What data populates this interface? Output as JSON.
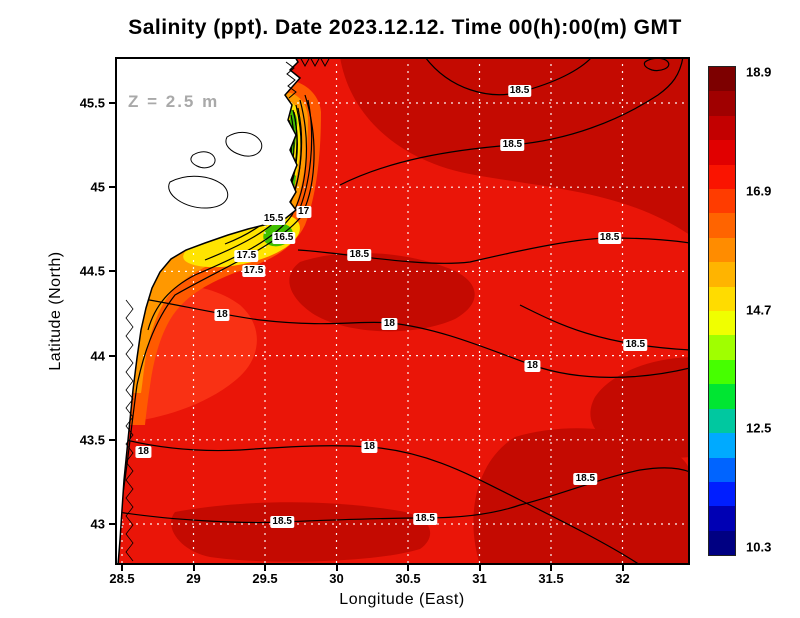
{
  "title": "Salinity (ppt). Date 2023.12.12. Time 00(h):00(m) GMT",
  "annotation": {
    "depth_label": "Z = 2.5 m",
    "color": "#a9a9a9"
  },
  "axes": {
    "x": {
      "label": "Longitude (East)",
      "ticks": [
        28.5,
        29,
        29.5,
        30,
        30.5,
        31,
        31.5,
        32
      ],
      "tick_labels": [
        "28.5",
        "29",
        "29.5",
        "30",
        "30.5",
        "31",
        "31.5",
        "32"
      ]
    },
    "y": {
      "label": "Latitude (North)",
      "ticks": [
        43,
        43.5,
        44,
        44.5,
        45,
        45.5
      ],
      "tick_labels": [
        "43",
        "43.5",
        "44",
        "44.5",
        "45",
        "45.5"
      ]
    }
  },
  "colorbar": {
    "min": 10.3,
    "max": 18.9,
    "labels": [
      "18.9",
      "16.9",
      "14.7",
      "12.5",
      "10.3"
    ],
    "colors_top_to_bottom": [
      "#7d0000",
      "#a00000",
      "#c30000",
      "#e10000",
      "#fa1400",
      "#ff3c00",
      "#ff6400",
      "#ff8c00",
      "#ffb400",
      "#ffdc00",
      "#f0ff00",
      "#a0ff00",
      "#46ff00",
      "#00e632",
      "#00c8a0",
      "#00aaff",
      "#0064ff",
      "#001eff",
      "#0000b4",
      "#000082"
    ]
  },
  "map_colors": {
    "sea_base_red": "#ea1508",
    "dark_red": "#c40a01",
    "bright_red": "#f93114",
    "orange_red": "#ff5a00",
    "orange": "#ff9800",
    "yellow": "#ffe400",
    "green": "#3fbf00",
    "land": "#ffffff",
    "contour": "#000000",
    "grid": "#ffffff"
  },
  "chart_data": {
    "type": "heatmap",
    "variable": "Salinity",
    "units": "ppt",
    "date": "2023.12.12",
    "time": "00(h):00(m) GMT",
    "depth": "Z = 2.5 m",
    "title": "Salinity (ppt). Date 2023.12.12. Time 00(h):00(m) GMT",
    "xlabel": "Longitude (East)",
    "ylabel": "Latitude (North)",
    "xlim": [
      28.45,
      32.47
    ],
    "ylim": [
      42.76,
      45.77
    ],
    "x_ticks": [
      28.5,
      29,
      29.5,
      30,
      30.5,
      31,
      31.5,
      32
    ],
    "y_ticks": [
      43,
      43.5,
      44,
      44.5,
      45,
      45.5
    ],
    "grid": "white dashed at every tick",
    "value_range": [
      10.3,
      18.9
    ],
    "colorbar_tick_labels": [
      "18.9",
      "16.9",
      "14.7",
      "12.5",
      "10.3"
    ],
    "contour_levels": [
      15.5,
      16.5,
      17,
      17.5,
      18,
      18.5
    ],
    "contour_labels": [
      {
        "value": "18.5",
        "lon": 31.28,
        "lat": 45.57
      },
      {
        "value": "18.5",
        "lon": 31.23,
        "lat": 45.25
      },
      {
        "value": "18.5",
        "lon": 31.91,
        "lat": 44.7
      },
      {
        "value": "18.5",
        "lon": 32.09,
        "lat": 44.06
      },
      {
        "value": "18.5",
        "lon": 30.16,
        "lat": 44.6
      },
      {
        "value": "18",
        "lon": 29.2,
        "lat": 44.24
      },
      {
        "value": "18",
        "lon": 30.37,
        "lat": 44.19
      },
      {
        "value": "18",
        "lon": 31.37,
        "lat": 43.94
      },
      {
        "value": "18",
        "lon": 28.65,
        "lat": 43.43
      },
      {
        "value": "18",
        "lon": 30.23,
        "lat": 43.46
      },
      {
        "value": "18.5",
        "lon": 31.74,
        "lat": 43.27
      },
      {
        "value": "18.5",
        "lon": 29.62,
        "lat": 43.01
      },
      {
        "value": "18.5",
        "lon": 30.62,
        "lat": 43.03
      },
      {
        "value": "17.5",
        "lon": 29.37,
        "lat": 44.59
      },
      {
        "value": "17.5",
        "lon": 29.42,
        "lat": 44.5
      },
      {
        "value": "17",
        "lon": 29.77,
        "lat": 44.85
      },
      {
        "value": "16.5",
        "lon": 29.63,
        "lat": 44.7
      },
      {
        "value": "15.5",
        "lon": 29.56,
        "lat": 44.81
      }
    ],
    "field_summary": "Open-sea salinity 18-18.9 ppt (red to dark red) over most of the domain; fresher river-plume water (15-17.5 ppt, green/yellow/orange bands) hugs the northwestern coast and river delta near 29.5-30E, 44.4-45.3N; land mass (white) occupies the upper-left/western edge with lagoon outlines."
  }
}
